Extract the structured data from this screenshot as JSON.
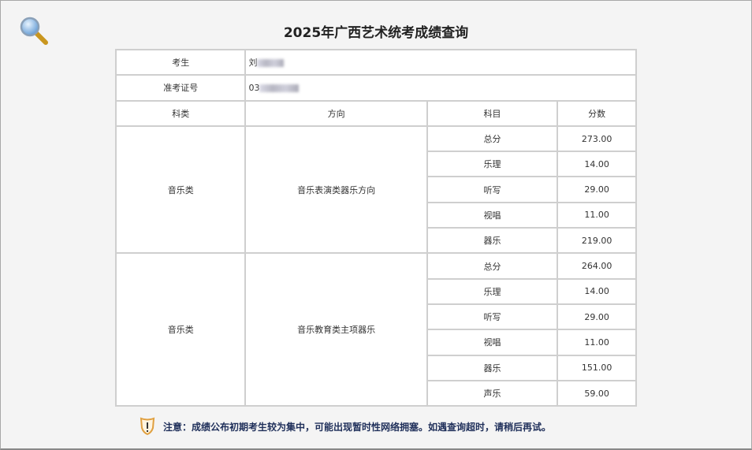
{
  "title": "2025年广西艺术统考成绩查询",
  "student": {
    "label": "考生",
    "value": "刘",
    "id_label": "准考证号",
    "id_value": "03"
  },
  "headers": [
    "科类",
    "方向",
    "科目",
    "分数"
  ],
  "groups": [
    {
      "category": "音乐类",
      "direction": "音乐表演类器乐方向",
      "rows": [
        [
          "总分",
          "273.00"
        ],
        [
          "乐理",
          "14.00"
        ],
        [
          "听写",
          "29.00"
        ],
        [
          "视唱",
          "11.00"
        ],
        [
          "器乐",
          "219.00"
        ]
      ]
    },
    {
      "category": "音乐类",
      "direction": "音乐教育类主项器乐",
      "rows": [
        [
          "总分",
          "264.00"
        ],
        [
          "乐理",
          "14.00"
        ],
        [
          "听写",
          "29.00"
        ],
        [
          "视唱",
          "11.00"
        ],
        [
          "器乐",
          "151.00"
        ],
        [
          "声乐",
          "59.00"
        ]
      ]
    }
  ],
  "notice": "注意：成绩公布初期考生较为集中，可能出现暂时性网络拥塞。如遇查询超时，请稍后再试。"
}
